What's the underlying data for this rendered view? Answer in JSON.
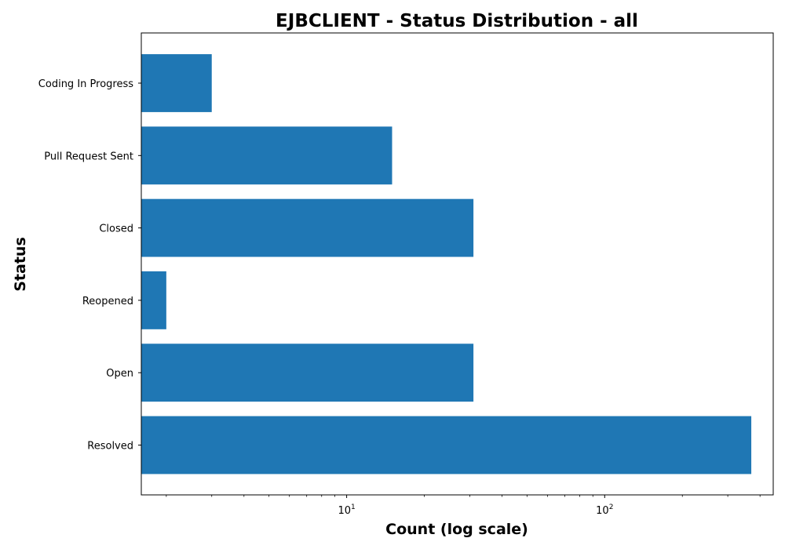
{
  "chart_data": {
    "type": "bar",
    "orientation": "horizontal",
    "title": "EJBCLIENT - Status Distribution - all",
    "xlabel": "Count (log scale)",
    "ylabel": "Status",
    "x_scale": "log",
    "xlim": [
      1.6,
      450
    ],
    "categories": [
      "Resolved",
      "Open",
      "Reopened",
      "Closed",
      "Pull Request Sent",
      "Coding In Progress"
    ],
    "values": [
      370,
      31,
      2,
      31,
      15,
      3
    ],
    "major_ticks": [
      {
        "value": 10,
        "base": "10",
        "exponent": "1"
      },
      {
        "value": 100,
        "base": "10",
        "exponent": "2"
      }
    ],
    "grid": false,
    "bar_color": "#1f77b4"
  }
}
